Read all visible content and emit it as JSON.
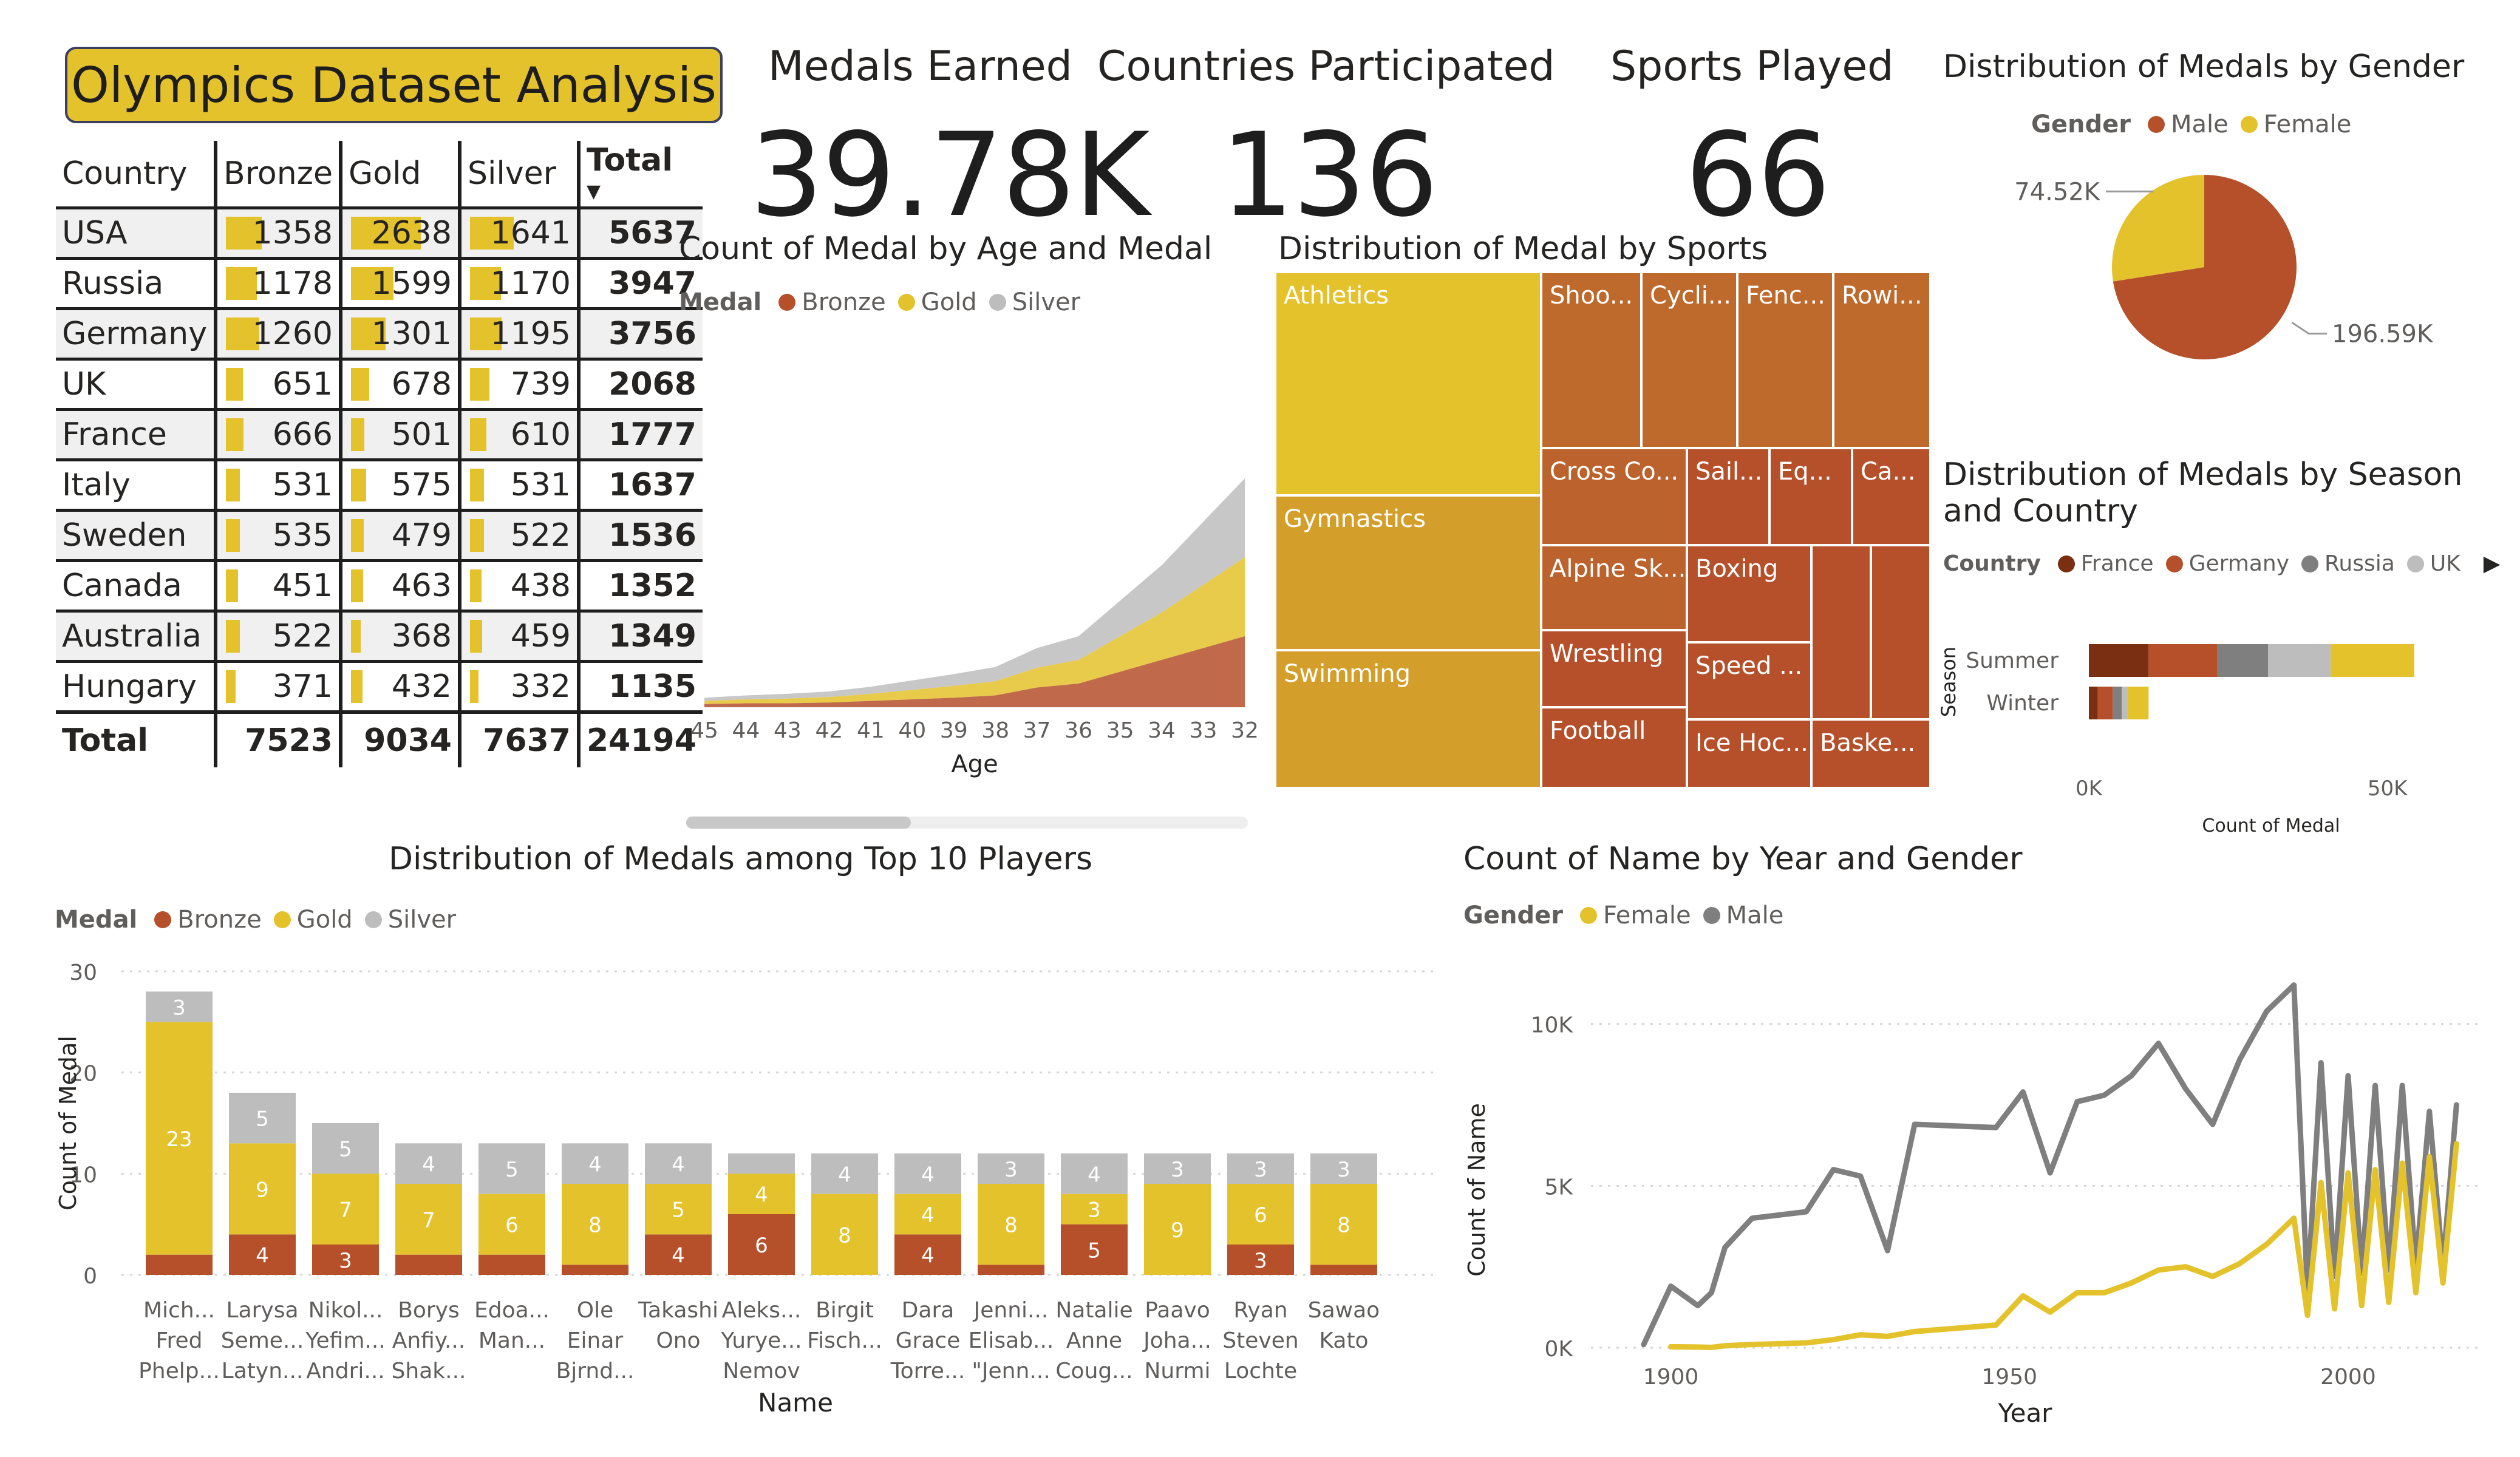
{
  "title": "Olympics Dataset Analysis",
  "kpis": [
    {
      "label": "Medals Earned",
      "value": "39.78K"
    },
    {
      "label": "Countries Participated",
      "value": "136"
    },
    {
      "label": "Sports Played",
      "value": "66"
    }
  ],
  "colors": {
    "bronze": "#B5502B",
    "gold": "#E4C22C",
    "silver": "#BDBDBD",
    "male_line": "#7F7F7F",
    "female_line": "#E4C22C",
    "france": "#7A2E12",
    "germany": "#B5502B",
    "russia": "#7F7F7F",
    "uk": "#BDBDBD",
    "other": "#E4C22C"
  },
  "country_table": {
    "headers": [
      "Country",
      "Bronze",
      "Gold",
      "Silver",
      "Total"
    ],
    "sort_indicator": "▼",
    "rows": [
      {
        "country": "USA",
        "bronze": 1358,
        "gold": 2638,
        "silver": 1641,
        "total": 5637
      },
      {
        "country": "Russia",
        "bronze": 1178,
        "gold": 1599,
        "silver": 1170,
        "total": 3947
      },
      {
        "country": "Germany",
        "bronze": 1260,
        "gold": 1301,
        "silver": 1195,
        "total": 3756
      },
      {
        "country": "UK",
        "bronze": 651,
        "gold": 678,
        "silver": 739,
        "total": 2068
      },
      {
        "country": "France",
        "bronze": 666,
        "gold": 501,
        "silver": 610,
        "total": 1777
      },
      {
        "country": "Italy",
        "bronze": 531,
        "gold": 575,
        "silver": 531,
        "total": 1637
      },
      {
        "country": "Sweden",
        "bronze": 535,
        "gold": 479,
        "silver": 522,
        "total": 1536
      },
      {
        "country": "Canada",
        "bronze": 451,
        "gold": 463,
        "silver": 438,
        "total": 1352
      },
      {
        "country": "Australia",
        "bronze": 522,
        "gold": 368,
        "silver": 459,
        "total": 1349
      },
      {
        "country": "Hungary",
        "bronze": 371,
        "gold": 432,
        "silver": 332,
        "total": 1135
      }
    ],
    "totals": {
      "label": "Total",
      "bronze": 7523,
      "gold": 9034,
      "silver": 7637,
      "total": 24194
    }
  },
  "chart_data": [
    {
      "id": "age_medal",
      "type": "area",
      "stacked": true,
      "title": "Count of Medal by Age and Medal",
      "legend_title": "Medal",
      "xlabel": "Age",
      "ylabel": "",
      "categories": [
        "45",
        "44",
        "43",
        "42",
        "41",
        "40",
        "39",
        "38",
        "37",
        "36",
        "35",
        "34",
        "33",
        "32"
      ],
      "series": [
        {
          "name": "Bronze",
          "values": [
            4,
            5,
            5,
            6,
            8,
            10,
            12,
            15,
            25,
            30,
            45,
            60,
            75,
            90
          ]
        },
        {
          "name": "Gold",
          "values": [
            4,
            5,
            6,
            7,
            9,
            12,
            15,
            18,
            25,
            30,
            45,
            60,
            80,
            100
          ]
        },
        {
          "name": "Silver",
          "values": [
            4,
            5,
            6,
            7,
            9,
            12,
            15,
            18,
            25,
            30,
            45,
            60,
            80,
            100
          ]
        }
      ],
      "legend": [
        "Bronze",
        "Gold",
        "Silver"
      ],
      "legend_position": "top-left"
    },
    {
      "id": "sports_treemap",
      "type": "treemap",
      "title": "Distribution of Medal by Sports",
      "labels": [
        "Athletics",
        "Gymnastics",
        "Swimming",
        "Shoo...",
        "Cycli...",
        "Fenc...",
        "Rowi...",
        "Cross Co...",
        "Sail...",
        "Eq...",
        "Ca...",
        "Alpine Sk...",
        "Boxing",
        "Wrestling",
        "Speed ...",
        "Football",
        "Ice Hoc...",
        "Baske..."
      ]
    },
    {
      "id": "gender_pie",
      "type": "pie",
      "title": "Distribution of Medals by Gender",
      "legend_title": "Gender",
      "labels": [
        "Male",
        "Female"
      ],
      "values": [
        196.59,
        74.52
      ],
      "data_labels": [
        "196.59K",
        "74.52K"
      ],
      "unit": "K",
      "legend_position": "top"
    },
    {
      "id": "season_country",
      "type": "bar",
      "orientation": "horizontal",
      "stacked": true,
      "title": "Distribution of Medals by Season and Country",
      "legend_title": "Country",
      "legend": [
        "France",
        "Germany",
        "Russia",
        "UK"
      ],
      "legend_more": "▶",
      "ylabel": "Season",
      "xlabel": "Count of Medal",
      "categories": [
        "Summer",
        "Winter"
      ],
      "series": [
        {
          "name": "France",
          "values": [
            10000,
            1500
          ]
        },
        {
          "name": "Germany",
          "values": [
            11500,
            2500
          ]
        },
        {
          "name": "Russia",
          "values": [
            8500,
            1500
          ]
        },
        {
          "name": "UK",
          "values": [
            10500,
            1000
          ]
        },
        {
          "values": [
            14000,
            3500
          ]
        }
      ],
      "xticks": [
        "0K",
        "50K"
      ],
      "xlim": [
        0,
        60000
      ]
    },
    {
      "id": "top_players",
      "type": "bar",
      "stacked": true,
      "title": "Distribution of Medals among Top 10 Players",
      "legend_title": "Medal",
      "legend": [
        "Bronze",
        "Gold",
        "Silver"
      ],
      "xlabel": "Name",
      "ylabel": "Count of Medal",
      "ylim": [
        0,
        30
      ],
      "yticks": [
        "0",
        "10",
        "20",
        "30"
      ],
      "categories": [
        [
          "Mich...",
          "Fred",
          "Phelp..."
        ],
        [
          "Larysa",
          "Seme...",
          "Latyn..."
        ],
        [
          "Nikol...",
          "Yefim...",
          "Andri..."
        ],
        [
          "Borys",
          "Anfiy...",
          "Shak..."
        ],
        [
          "Edoa...",
          "Man..."
        ],
        [
          "Ole",
          "Einar",
          "Bjrnd..."
        ],
        [
          "Takashi",
          "Ono"
        ],
        [
          "Aleks...",
          "Yurye...",
          "Nemov"
        ],
        [
          "Birgit",
          "Fisch..."
        ],
        [
          "Dara",
          "Grace",
          "Torre..."
        ],
        [
          "Jenni...",
          "Elisab...",
          "\"Jenn..."
        ],
        [
          "Natalie",
          "Anne",
          "Coug..."
        ],
        [
          "Paavo",
          "Joha...",
          "Nurmi"
        ],
        [
          "Ryan",
          "Steven",
          "Lochte"
        ],
        [
          "Sawao",
          "Kato"
        ]
      ],
      "series": [
        {
          "name": "Bronze",
          "values": [
            2,
            4,
            3,
            2,
            2,
            1,
            4,
            6,
            0,
            4,
            1,
            5,
            0,
            3,
            1
          ]
        },
        {
          "name": "Gold",
          "values": [
            23,
            9,
            7,
            7,
            6,
            8,
            5,
            4,
            8,
            4,
            8,
            3,
            9,
            6,
            8
          ]
        },
        {
          "name": "Silver",
          "values": [
            3,
            5,
            5,
            4,
            5,
            4,
            4,
            2,
            4,
            4,
            3,
            4,
            3,
            3,
            3
          ]
        }
      ],
      "data_labels": {
        "Bronze": [
          "",
          "4",
          "3",
          "",
          "",
          "",
          "4",
          "6",
          "",
          "4",
          "",
          "5",
          "",
          "3",
          ""
        ],
        "Gold": [
          "23",
          "9",
          "7",
          "7",
          "6",
          "8",
          "5",
          "4",
          "8",
          "4",
          "8",
          "3",
          "9",
          "6",
          "8"
        ],
        "Silver": [
          "3",
          "5",
          "5",
          "4",
          "5",
          "4",
          "4",
          "",
          "4",
          "4",
          "3",
          "4",
          "3",
          "3",
          "3"
        ]
      }
    },
    {
      "id": "year_gender",
      "type": "line",
      "title": "Count of Name by Year and Gender",
      "legend_title": "Gender",
      "legend": [
        "Female",
        "Male"
      ],
      "xlabel": "Year",
      "ylabel": "Count of Name",
      "xlim": [
        1890,
        2020
      ],
      "ylim": [
        0,
        12000
      ],
      "xticks": [
        "1900",
        "1950",
        "2000"
      ],
      "yticks": [
        "0K",
        "5K",
        "10K"
      ],
      "series": [
        {
          "name": "Male",
          "x": [
            1896,
            1900,
            1904,
            1906,
            1908,
            1912,
            1920,
            1924,
            1928,
            1932,
            1936,
            1948,
            1952,
            1956,
            1960,
            1964,
            1968,
            1972,
            1976,
            1980,
            1984,
            1988,
            1992,
            1994,
            1996,
            1998,
            2000,
            2002,
            2004,
            2006,
            2008,
            2010,
            2012,
            2014,
            2016
          ],
          "values": [
            100,
            1900,
            1300,
            1700,
            3100,
            4000,
            4200,
            5500,
            5300,
            3000,
            6900,
            6800,
            7900,
            5400,
            7600,
            7800,
            8400,
            9400,
            8000,
            6900,
            8900,
            10400,
            11200,
            1700,
            8800,
            2200,
            8400,
            2300,
            8100,
            2400,
            8100,
            2500,
            7300,
            2500,
            7500
          ]
        },
        {
          "name": "Female",
          "x": [
            1900,
            1904,
            1906,
            1908,
            1912,
            1920,
            1924,
            1928,
            1932,
            1936,
            1948,
            1952,
            1956,
            1960,
            1964,
            1968,
            1972,
            1976,
            1980,
            1984,
            1988,
            1992,
            1994,
            1996,
            1998,
            2000,
            2002,
            2004,
            2006,
            2008,
            2010,
            2012,
            2014,
            2016
          ],
          "values": [
            30,
            20,
            10,
            60,
            100,
            150,
            250,
            400,
            350,
            500,
            700,
            1600,
            1100,
            1700,
            1700,
            2000,
            2400,
            2500,
            2200,
            2600,
            3200,
            4000,
            1000,
            5100,
            1200,
            5400,
            1300,
            5500,
            1400,
            5700,
            1700,
            5900,
            2000,
            6300
          ]
        }
      ],
      "legend_position": "top-left"
    }
  ]
}
